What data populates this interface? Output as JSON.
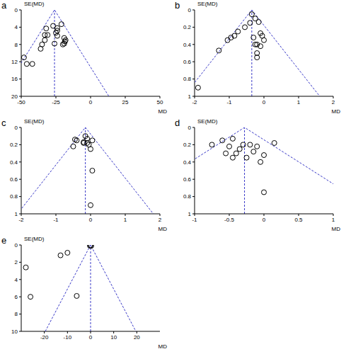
{
  "chart_data": [
    {
      "type": "scatter",
      "title": "a",
      "x_label": "MD",
      "y_label": "SE(MD)",
      "color": "#000000",
      "xlim": [
        -50,
        50
      ],
      "xticks": [
        -50,
        -25,
        0,
        25,
        50
      ],
      "ylim": [
        0,
        20
      ],
      "yticks": [
        0,
        4,
        8,
        12,
        16,
        20
      ],
      "pooled_md": -26,
      "funnel": {
        "x": [
          -65.2,
          -26,
          13.2
        ],
        "y": [
          20,
          0,
          20
        ]
      },
      "x": [
        -21,
        -27,
        -24,
        -32,
        -24,
        -25,
        -33,
        -31,
        -24,
        -33,
        -19,
        -18,
        -18.5,
        -19,
        -26,
        -35,
        -36,
        -20,
        -48,
        -46,
        -42
      ],
      "y": [
        3.3,
        3.7,
        4.2,
        4.3,
        4.8,
        5.3,
        5.8,
        5.8,
        6,
        7,
        6.5,
        7,
        7.3,
        7.8,
        7.8,
        8,
        9,
        8,
        11,
        12.5,
        12.5
      ]
    },
    {
      "type": "scatter",
      "title": "b",
      "x_label": "MD",
      "y_label": "SE(MD)",
      "color": "#000000",
      "xlim": [
        -2,
        2
      ],
      "xticks": [
        -2,
        -1,
        0,
        1,
        2
      ],
      "ylim": [
        0,
        1
      ],
      "yticks": [
        0,
        0.2,
        0.4,
        0.6,
        0.8,
        1
      ],
      "pooled_md": -0.35,
      "funnel": {
        "x": [
          -2.31,
          -0.35,
          1.61
        ],
        "y": [
          1,
          0,
          1
        ]
      },
      "x": [
        -0.35,
        -0.25,
        -0.15,
        -0.4,
        -0.55,
        -0.75,
        -0.85,
        -0.1,
        -0.05,
        -0.95,
        -1.05,
        -0.3,
        0,
        -0.2,
        -0.25,
        -0.1,
        -0.2,
        -0.2,
        -1.3,
        -1.9
      ],
      "y": [
        0.05,
        0.1,
        0.14,
        0.15,
        0.2,
        0.25,
        0.3,
        0.27,
        0.3,
        0.32,
        0.35,
        0.32,
        0.35,
        0.4,
        0.4,
        0.42,
        0.5,
        0.55,
        0.47,
        0.9
      ]
    },
    {
      "type": "scatter",
      "title": "c",
      "x_label": "MD",
      "y_label": "SE(MD)",
      "color": "#000000",
      "xlim": [
        -2,
        2
      ],
      "xticks": [
        -2,
        -1,
        0,
        1,
        2
      ],
      "ylim": [
        0,
        1
      ],
      "yticks": [
        0,
        0.2,
        0.4,
        0.6,
        0.8,
        1
      ],
      "pooled_md": -0.15,
      "funnel": {
        "x": [
          -2.11,
          -0.15,
          1.81
        ],
        "y": [
          1,
          0,
          1
        ]
      },
      "x": [
        -0.15,
        -0.1,
        -0.45,
        -0.4,
        -0.2,
        -0.1,
        -0.05,
        0.05,
        -0.2,
        -0.5,
        0,
        0.05,
        0
      ],
      "y": [
        0.1,
        0.13,
        0.14,
        0.15,
        0.17,
        0.18,
        0.2,
        0.15,
        0.18,
        0.22,
        0.25,
        0.5,
        0.9
      ]
    },
    {
      "type": "scatter",
      "title": "d",
      "x_label": "MD",
      "y_label": "SE(MD)",
      "color": "#000000",
      "xlim": [
        -1,
        1
      ],
      "xticks": [
        -1,
        -0.5,
        0,
        0.5,
        1
      ],
      "ylim": [
        0,
        1
      ],
      "yticks": [
        0,
        0.2,
        0.4,
        0.6,
        0.8,
        1
      ],
      "pooled_md": -0.28,
      "funnel": {
        "x": [
          -2.24,
          -0.28,
          1.68
        ],
        "y": [
          1,
          0,
          1
        ]
      },
      "x": [
        -0.75,
        -0.6,
        -0.45,
        -0.5,
        -0.35,
        -0.3,
        -0.2,
        -0.1,
        0.15,
        -0.55,
        -0.4,
        -0.45,
        -0.25,
        -0.15,
        0,
        -0.05,
        0
      ],
      "y": [
        0.2,
        0.15,
        0.13,
        0.22,
        0.25,
        0.2,
        0.2,
        0.22,
        0.18,
        0.3,
        0.3,
        0.35,
        0.35,
        0.28,
        0.32,
        0.4,
        0.75
      ]
    },
    {
      "type": "scatter",
      "title": "e",
      "x_label": "MD",
      "y_label": "SE(MD)",
      "color": "#000000",
      "xlim": [
        -30,
        30
      ],
      "xticks": [
        -20,
        -10,
        0,
        10,
        20
      ],
      "ylim": [
        0,
        10
      ],
      "yticks": [
        0,
        2,
        4,
        6,
        8,
        10
      ],
      "pooled_md": 0,
      "funnel": {
        "x": [
          -19.6,
          0,
          19.6
        ],
        "y": [
          10,
          0,
          10
        ]
      },
      "x": [
        0,
        0.3,
        -0.3,
        -13,
        -10,
        -28,
        -26,
        -6
      ],
      "y": [
        0.05,
        0.1,
        0.08,
        1.2,
        0.9,
        2.6,
        6,
        5.9
      ]
    }
  ]
}
